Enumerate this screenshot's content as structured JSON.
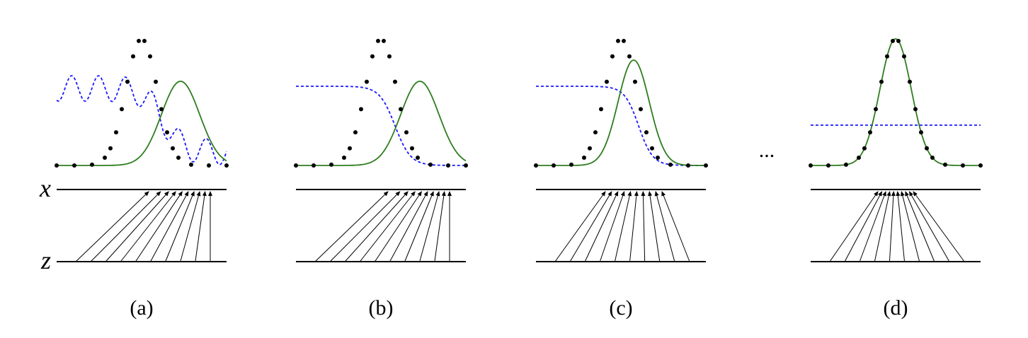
{
  "axes": {
    "x": "x",
    "z": "z"
  },
  "panels": [
    {
      "label": "(a)"
    },
    {
      "label": "(b)"
    },
    {
      "label": "(c)"
    },
    {
      "label": "(d)"
    }
  ],
  "ellipsis": "..."
}
